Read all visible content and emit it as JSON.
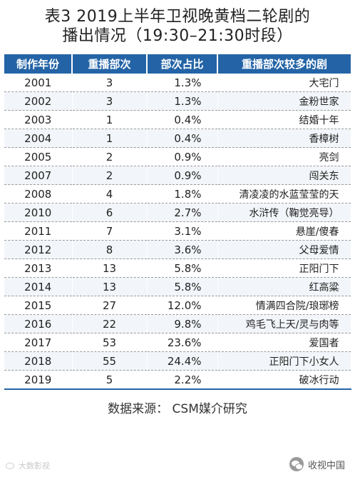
{
  "title": {
    "line1": "表3  2019上半年卫视晚黄档二轮剧的",
    "line2": "播出情况（19:30–21:30时段）"
  },
  "table": {
    "headers": [
      "制作年份",
      "重播部次",
      "部次占比",
      "重播部次较多的剧"
    ],
    "rows": [
      [
        "2001",
        "3",
        "1.3%",
        "大宅门"
      ],
      [
        "2002",
        "3",
        "1.3%",
        "金粉世家"
      ],
      [
        "2003",
        "1",
        "0.4%",
        "结婚十年"
      ],
      [
        "2004",
        "1",
        "0.4%",
        "香樟树"
      ],
      [
        "2005",
        "2",
        "0.9%",
        "亮剑"
      ],
      [
        "2007",
        "2",
        "0.9%",
        "闯关东"
      ],
      [
        "2008",
        "4",
        "1.8%",
        "清凌凌的水蓝莹莹的天"
      ],
      [
        "2010",
        "6",
        "2.7%",
        "水浒传（鞠觉亮导）"
      ],
      [
        "2011",
        "7",
        "3.1%",
        "悬崖/傻春"
      ],
      [
        "2012",
        "8",
        "3.6%",
        "父母爱情"
      ],
      [
        "2013",
        "13",
        "5.8%",
        "正阳门下"
      ],
      [
        "2014",
        "13",
        "5.8%",
        "红高粱"
      ],
      [
        "2015",
        "27",
        "12.0%",
        "情满四合院/琅琊榜"
      ],
      [
        "2016",
        "22",
        "9.8%",
        "鸡毛飞上天/灵与肉等"
      ],
      [
        "2017",
        "53",
        "23.6%",
        "爱国者"
      ],
      [
        "2018",
        "55",
        "24.4%",
        "正阳门下小女人"
      ],
      [
        "2019",
        "5",
        "2.2%",
        "破冰行动"
      ]
    ]
  },
  "source": "数据来源：  CSM媒介研究",
  "watermark_left": "大数影视",
  "watermark_right": "收视中国",
  "colors": {
    "header_bg": "#2464a6",
    "header_text": "#ffffff",
    "stripe": "#f2f5f9"
  },
  "icons": {
    "left": "weibo-icon",
    "right": "wechat-icon"
  }
}
